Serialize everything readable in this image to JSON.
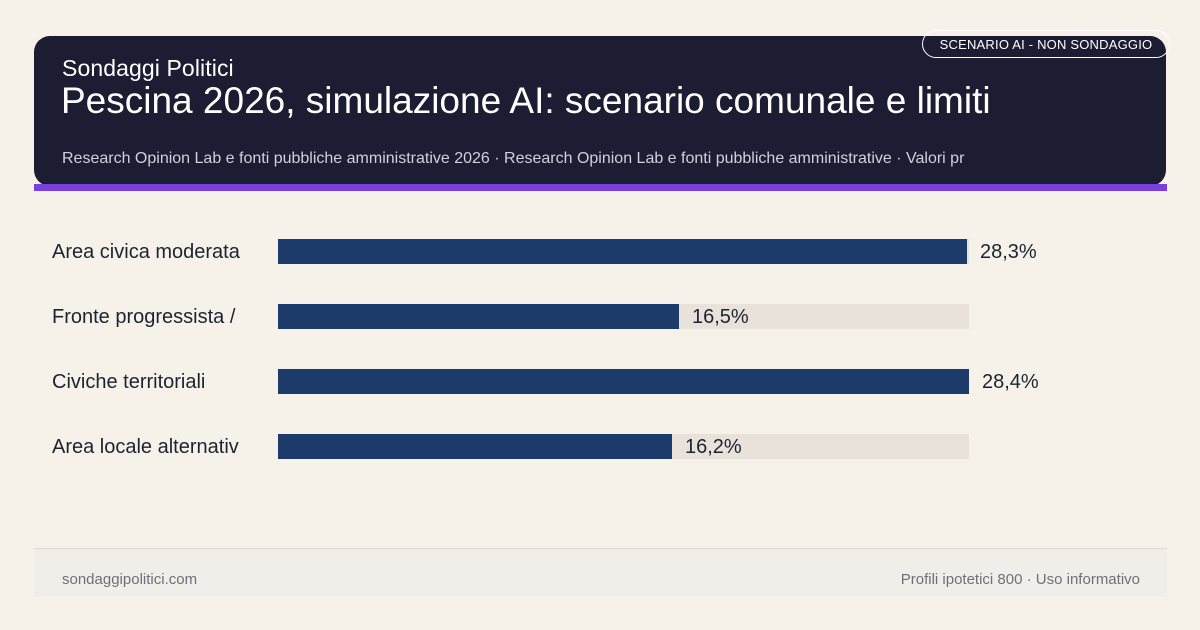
{
  "header": {
    "brand": "Sondaggi Politici",
    "title": "Pescina 2026, simulazione AI: scenario comunale e limiti",
    "source": "Research Opinion Lab e fonti pubbliche amministrative 2026 · Research Opinion Lab e fonti pubbliche amministrative · Valori pr",
    "badge": "SCENARIO AI - NON SONDAGGIO"
  },
  "chart_data": {
    "type": "bar",
    "orientation": "horizontal",
    "categories": [
      "Area civica moderata",
      "Fronte progressista /",
      "Civiche territoriali",
      "Area locale alternativ"
    ],
    "values": [
      28.3,
      16.5,
      28.4,
      16.2
    ],
    "value_labels": [
      "28,3%",
      "16,5%",
      "28,4%",
      "16,2%"
    ],
    "xlim": [
      0,
      28.4
    ],
    "grid": false,
    "legend": "none",
    "colors": {
      "bar": "#1c3a6a",
      "track": "#e8e2da"
    }
  },
  "footer": {
    "left": "sondaggipolitici.com",
    "right": "Profili ipotetici 800 · Uso informativo"
  },
  "colors": {
    "background": "#f6f2ea",
    "header": "#1c1c32",
    "accent": "#7a3fe0"
  }
}
